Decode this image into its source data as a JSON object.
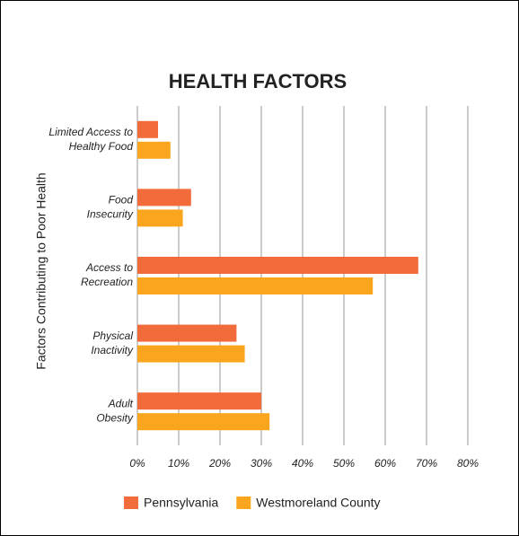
{
  "chart_data": {
    "type": "bar",
    "orientation": "horizontal",
    "title": "HEALTH FACTORS",
    "y_label": "Factors Contributing to Poor Health",
    "categories": [
      [
        "Limited Access to",
        "Healthy Food"
      ],
      [
        "Food",
        "Insecurity"
      ],
      [
        "Access to",
        "Recreation"
      ],
      [
        "Physical",
        "Inactivity"
      ],
      [
        "Adult",
        "Obesity"
      ]
    ],
    "series": [
      {
        "name": "Pennsylvania",
        "color": "#f26b3a",
        "values": [
          5,
          13,
          68,
          24,
          30
        ]
      },
      {
        "name": "Westmoreland County",
        "color": "#f9a61e",
        "values": [
          8,
          11,
          57,
          26,
          32
        ]
      }
    ],
    "xlim": [
      0,
      80
    ],
    "xticks": [
      {
        "value": 0,
        "label": "0%"
      },
      {
        "value": 10,
        "label": "10%"
      },
      {
        "value": 20,
        "label": "20%"
      },
      {
        "value": 30,
        "label": "30%"
      },
      {
        "value": 40,
        "label": "40%"
      },
      {
        "value": 50,
        "label": "50%"
      },
      {
        "value": 60,
        "label": "60%"
      },
      {
        "value": 70,
        "label": "70%"
      },
      {
        "value": 80,
        "label": "80%"
      }
    ],
    "grid": true,
    "legend": "bottom"
  }
}
